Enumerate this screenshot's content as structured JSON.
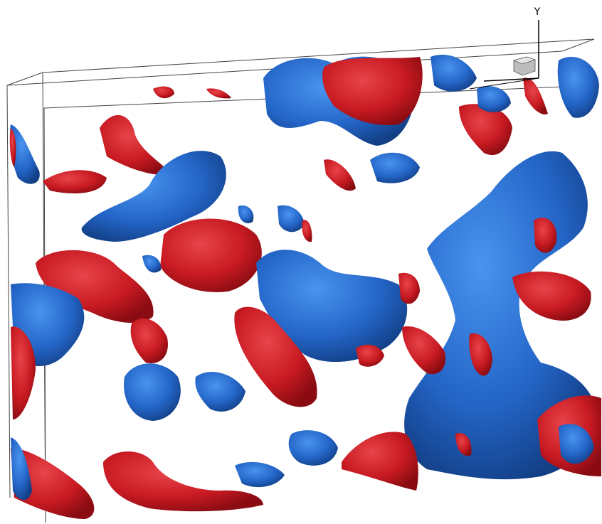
{
  "axes": {
    "y_label": "Y"
  }
}
